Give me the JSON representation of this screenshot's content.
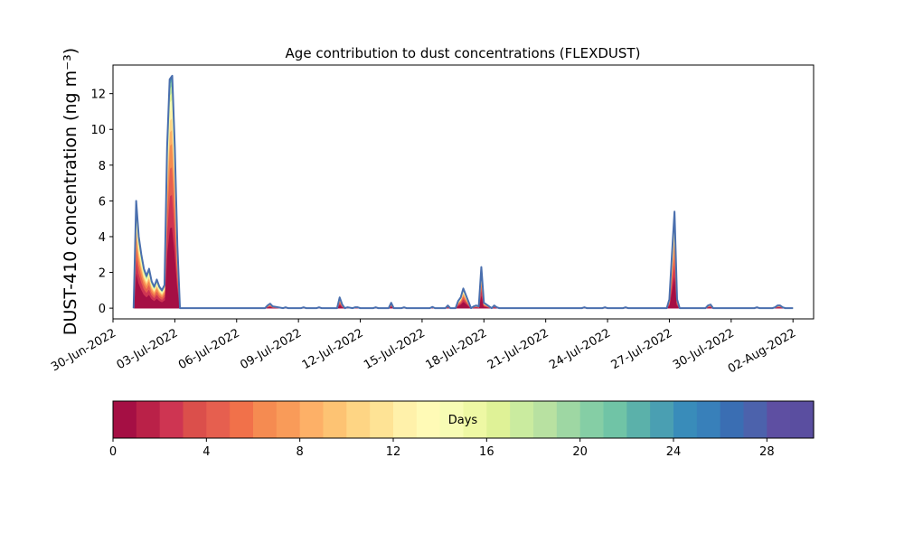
{
  "chart_data": {
    "type": "area",
    "title": "Age contribution to dust concentrations (FLEXDUST)",
    "ylabel": "DUST-410 concentration (ng m⁻³)",
    "xlabel": "",
    "x_ticks": [
      "30-Jun-2022",
      "03-Jul-2022",
      "06-Jul-2022",
      "09-Jul-2022",
      "12-Jul-2022",
      "15-Jul-2022",
      "18-Jul-2022",
      "21-Jul-2022",
      "24-Jul-2022",
      "27-Jul-2022",
      "30-Jul-2022",
      "02-Aug-2022"
    ],
    "y_ticks": [
      "0",
      "2",
      "4",
      "6",
      "8",
      "10",
      "12"
    ],
    "xlim": [
      "2022-06-30 00:00",
      "2022-08-03 00:00"
    ],
    "ylim": [
      -0.6,
      13.6
    ],
    "stacked": true,
    "grid": false,
    "total_series": {
      "name": "",
      "x": [
        "2022-07-01 00:00",
        "2022-07-01 03:00",
        "2022-07-01 06:00",
        "2022-07-01 09:00",
        "2022-07-01 12:00",
        "2022-07-01 15:00",
        "2022-07-01 18:00",
        "2022-07-01 21:00",
        "2022-07-02 00:00",
        "2022-07-02 03:00",
        "2022-07-02 06:00",
        "2022-07-02 09:00",
        "2022-07-02 12:00",
        "2022-07-02 15:00",
        "2022-07-02 18:00",
        "2022-07-02 21:00",
        "2022-07-03 00:00",
        "2022-07-03 03:00",
        "2022-07-03 06:00",
        "2022-07-03 09:00",
        "2022-07-03 12:00",
        "2022-07-07 09:00",
        "2022-07-07 12:00",
        "2022-07-07 15:00",
        "2022-07-07 18:00",
        "2022-07-08 06:00",
        "2022-07-08 09:00",
        "2022-07-08 12:00",
        "2022-07-09 03:00",
        "2022-07-09 06:00",
        "2022-07-09 09:00",
        "2022-07-09 21:00",
        "2022-07-10 00:00",
        "2022-07-10 03:00",
        "2022-07-10 21:00",
        "2022-07-11 00:00",
        "2022-07-11 03:00",
        "2022-07-11 06:00",
        "2022-07-11 09:00",
        "2022-07-11 15:00",
        "2022-07-11 18:00",
        "2022-07-11 21:00",
        "2022-07-12 00:00",
        "2022-07-12 15:00",
        "2022-07-12 18:00",
        "2022-07-12 21:00",
        "2022-07-13 09:00",
        "2022-07-13 12:00",
        "2022-07-13 15:00",
        "2022-07-14 00:00",
        "2022-07-14 03:00",
        "2022-07-14 06:00",
        "2022-07-15 09:00",
        "2022-07-15 12:00",
        "2022-07-15 15:00",
        "2022-07-16 03:00",
        "2022-07-16 06:00",
        "2022-07-16 09:00",
        "2022-07-16 15:00",
        "2022-07-16 18:00",
        "2022-07-16 21:00",
        "2022-07-17 00:00",
        "2022-07-17 09:00",
        "2022-07-17 12:00",
        "2022-07-17 15:00",
        "2022-07-17 18:00",
        "2022-07-17 21:00",
        "2022-07-18 00:00",
        "2022-07-18 09:00",
        "2022-07-18 12:00",
        "2022-07-18 15:00",
        "2022-07-18 18:00",
        "2022-07-22 18:00",
        "2022-07-22 21:00",
        "2022-07-23 00:00",
        "2022-07-23 18:00",
        "2022-07-23 21:00",
        "2022-07-24 00:00",
        "2022-07-24 18:00",
        "2022-07-24 21:00",
        "2022-07-25 00:00",
        "2022-07-26 21:00",
        "2022-07-27 00:00",
        "2022-07-27 03:00",
        "2022-07-27 06:00",
        "2022-07-27 09:00",
        "2022-07-27 12:00",
        "2022-07-27 15:00",
        "2022-07-27 18:00",
        "2022-07-28 18:00",
        "2022-07-28 21:00",
        "2022-07-29 00:00",
        "2022-07-29 03:00",
        "2022-07-29 06:00",
        "2022-07-31 03:00",
        "2022-07-31 06:00",
        "2022-07-31 09:00",
        "2022-08-01 00:00",
        "2022-08-01 03:00",
        "2022-08-01 06:00",
        "2022-08-01 09:00",
        "2022-08-01 12:00",
        "2022-08-01 15:00",
        "2022-08-01 18:00",
        "2022-08-01 21:00",
        "2022-08-02 00:00"
      ],
      "y": [
        0,
        6.0,
        4.0,
        3.0,
        2.2,
        1.8,
        2.2,
        1.5,
        1.2,
        1.6,
        1.2,
        1.0,
        1.3,
        9.0,
        12.8,
        13.0,
        9.0,
        3.5,
        0,
        0,
        0,
        0,
        0.15,
        0.25,
        0.1,
        0,
        0.05,
        0,
        0,
        0.05,
        0,
        0,
        0.05,
        0,
        0,
        0.6,
        0.2,
        0,
        0.05,
        0,
        0.05,
        0.05,
        0,
        0,
        0.05,
        0,
        0,
        0.3,
        0,
        0,
        0.05,
        0,
        0,
        0.07,
        0,
        0,
        0.15,
        0,
        0,
        0.4,
        0.6,
        1.1,
        0,
        0.1,
        0.15,
        0.1,
        2.3,
        0.3,
        0,
        0.15,
        0.05,
        0,
        0,
        0.05,
        0,
        0,
        0.05,
        0,
        0,
        0.05,
        0,
        0,
        0.5,
        3.0,
        5.4,
        0.5,
        0,
        0,
        0,
        0,
        0.15,
        0.2,
        0,
        0,
        0,
        0.05,
        0,
        0,
        0.05,
        0.15,
        0.15,
        0.05,
        0,
        0,
        0,
        0
      ],
      "share_by_age": [
        0.35,
        0.14,
        0.12,
        0.1,
        0.06,
        0.05,
        0.04,
        0.04,
        0.03,
        0.03,
        0.02,
        0.01,
        0.01
      ]
    },
    "colorbar": {
      "label": "Days",
      "range": [
        0,
        30
      ],
      "ticks": [
        "0",
        "4",
        "8",
        "12",
        "16",
        "20",
        "24",
        "28"
      ],
      "colors": [
        "#a50f44",
        "#ba2148",
        "#ce3552",
        "#db4f4b",
        "#e65f4f",
        "#f1714a",
        "#f58b51",
        "#f99b59",
        "#fdb067",
        "#fdc373",
        "#fed584",
        "#fee395",
        "#fff1aa",
        "#fffab6",
        "#f7fcb4",
        "#eef8a4",
        "#dff297",
        "#caeb9f",
        "#b8e1a1",
        "#9ed7a3",
        "#85cea5",
        "#70c4a6",
        "#5bb1aa",
        "#4a9fb2",
        "#398cba",
        "#3880ba",
        "#3a6eb3",
        "#4c62ac",
        "#5e4fa2",
        "#5a4ea0"
      ]
    }
  }
}
